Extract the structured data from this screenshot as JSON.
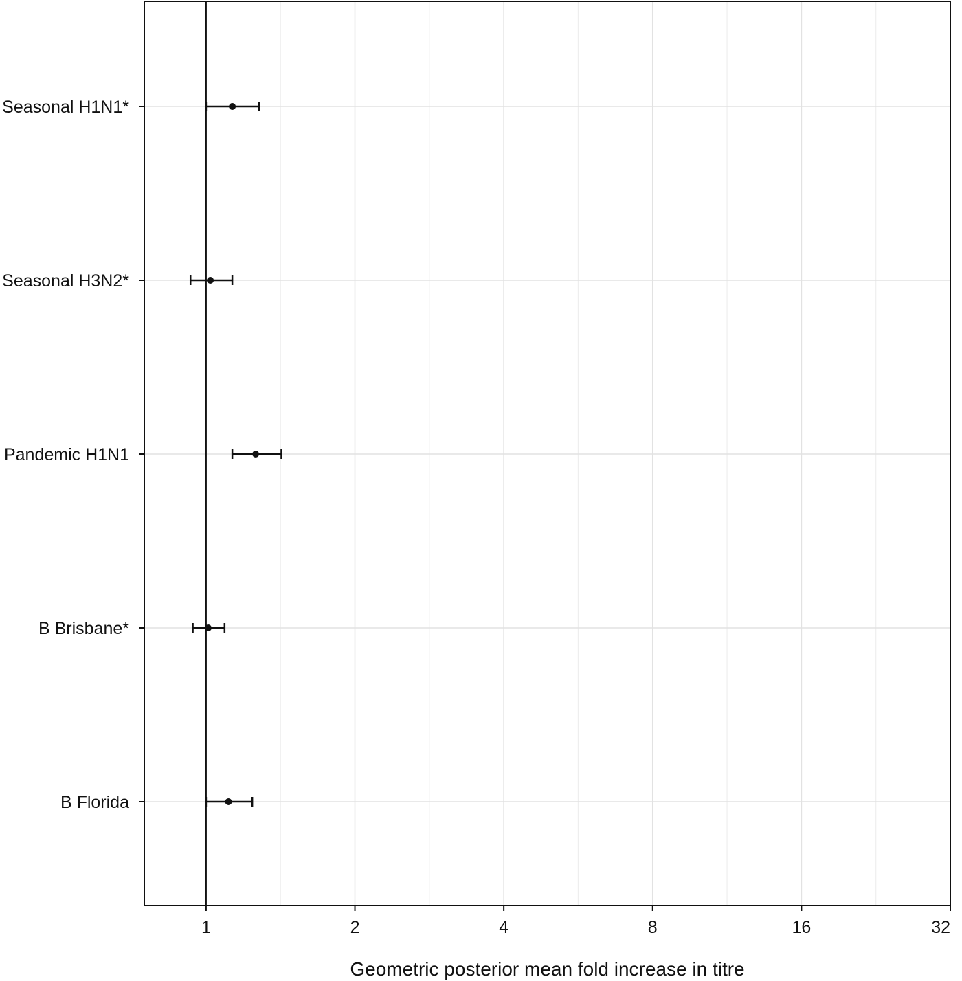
{
  "chart_data": {
    "type": "forest",
    "xlabel": "Geometric posterior mean fold increase in titre",
    "x_scale": "log2",
    "xlim": [
      0.75,
      32
    ],
    "xticks": [
      1,
      2,
      4,
      8,
      16,
      32
    ],
    "xtick_labels": [
      "1",
      "2",
      "4",
      "8",
      "16",
      "32"
    ],
    "reference_line": 1,
    "grid": true,
    "categories": [
      "Seasonal H1N1*",
      "Seasonal H3N2*",
      "Pandemic H1N1",
      "B Brisbane*",
      "B Florida"
    ],
    "estimates": [
      1.13,
      1.02,
      1.26,
      1.01,
      1.11
    ],
    "lower": [
      1.0,
      0.93,
      1.13,
      0.94,
      1.0
    ],
    "upper": [
      1.28,
      1.13,
      1.42,
      1.09,
      1.24
    ]
  }
}
